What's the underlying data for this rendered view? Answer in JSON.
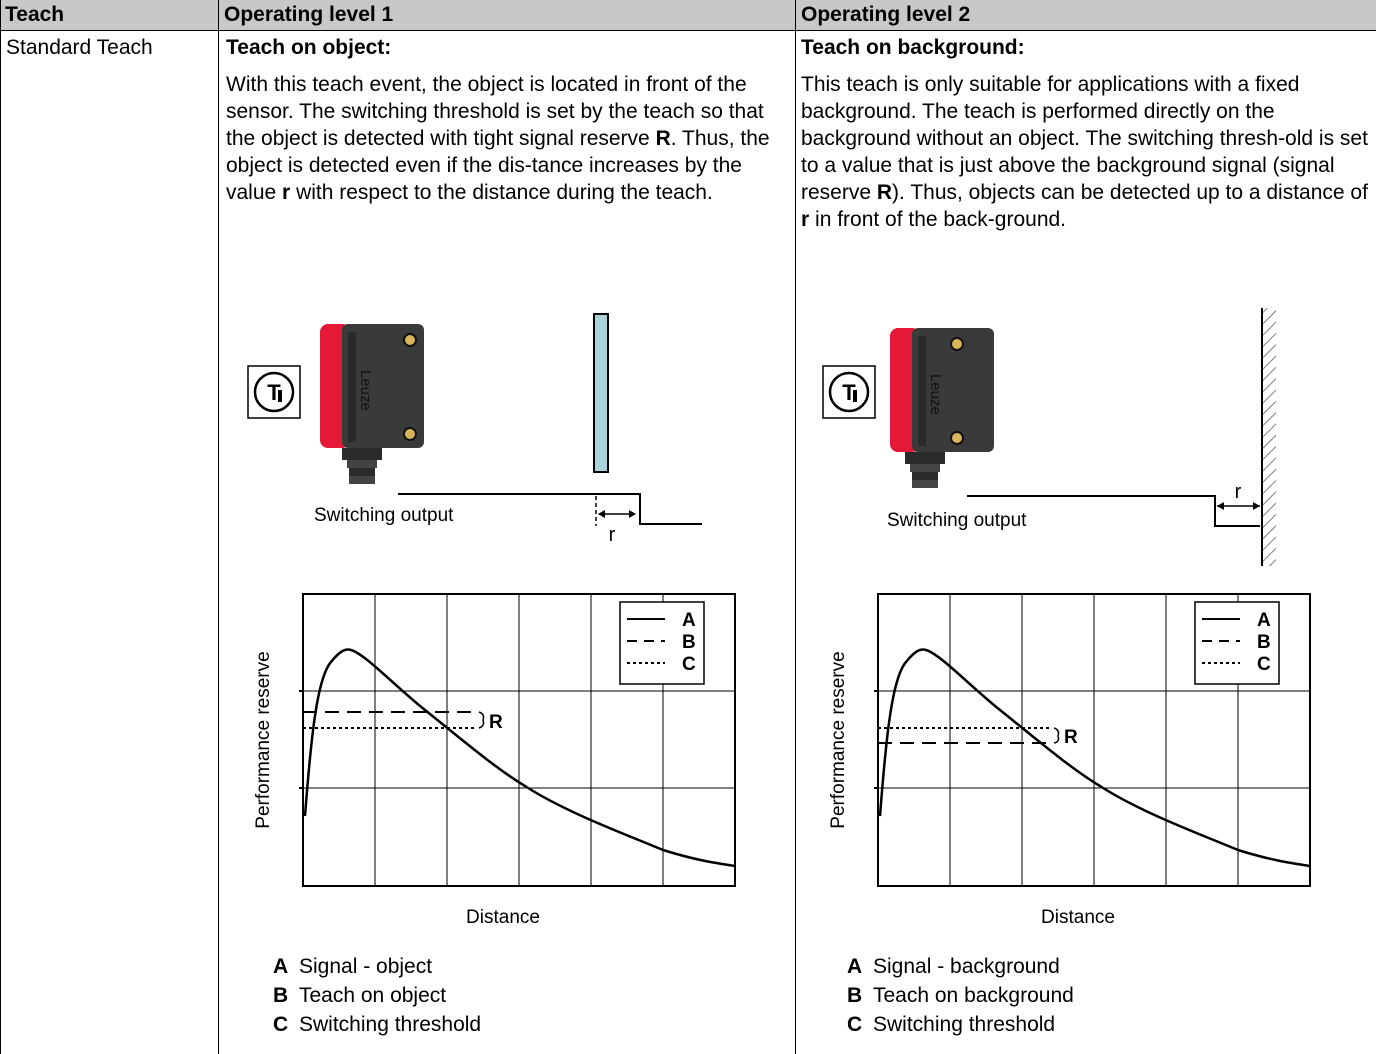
{
  "header": {
    "col1": "Teach",
    "col2": "Operating level 1",
    "col3": "Operating level 2"
  },
  "row": {
    "label": "Standard Teach",
    "level1": {
      "title": "Teach on object:",
      "paragraph_html": "With this teach event, the object is located in front of the sensor. The switching threshold is set by the teach so that the object is detected with tight signal reserve <b>R</b>. Thus, the object is detected even if the dis-tance increases by the value <b>r</b> with respect to the distance during the teach.",
      "sensor_brand": "Leuze",
      "teach_symbol": "T",
      "switching_output_label": "Switching output",
      "distance_label": "r",
      "chart": {
        "ylabel": "Performance reserve",
        "xlabel": "Distance",
        "legend": [
          "A",
          "B",
          "C"
        ],
        "reserve_label": "R"
      },
      "legend": [
        {
          "key": "A",
          "text": "Signal - object"
        },
        {
          "key": "B",
          "text": "Teach on object"
        },
        {
          "key": "C",
          "text": "Switching threshold"
        }
      ]
    },
    "level2": {
      "title": "Teach on background:",
      "paragraph_html": "This teach is only suitable for applications with a fixed background. The teach is performed directly on the background without an object. The switching thresh-old is set to a value that is just above the background signal (signal reserve <b>R</b>). Thus, objects can be detected up to a distance of <b>r</b> in front of the back-ground.",
      "sensor_brand": "Leuze",
      "teach_symbol": "T",
      "switching_output_label": "Switching output",
      "distance_label": "r",
      "chart": {
        "ylabel": "Performance reserve",
        "xlabel": "Distance",
        "legend": [
          "A",
          "B",
          "C"
        ],
        "reserve_label": "R"
      },
      "legend": [
        {
          "key": "A",
          "text": "Signal - background"
        },
        {
          "key": "B",
          "text": "Teach on background"
        },
        {
          "key": "C",
          "text": "Switching threshold"
        }
      ]
    }
  },
  "colors": {
    "header_bg": "#c8c8c8",
    "sensor_red": "#e31937",
    "sensor_body": "#3a3a3a",
    "object_fill": "#a9d3d9"
  }
}
